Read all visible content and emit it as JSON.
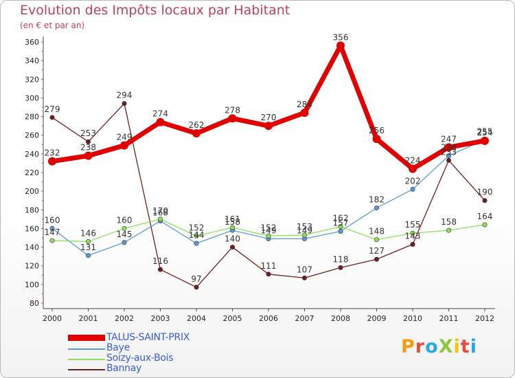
{
  "header": {
    "title": "Evolution des Impôts locaux par Habitant",
    "subtitle": "(en € et par an)"
  },
  "logo": {
    "text": "ProXiti",
    "colors": [
      "#f39c12",
      "#e74c3c",
      "#27a9e1",
      "#8dc63f",
      "#f1c40f",
      "#e74c3c",
      "#27a9e1"
    ]
  },
  "chart_data": {
    "type": "line",
    "x": [
      "2000",
      "2001",
      "2002",
      "2003",
      "2004",
      "2005",
      "2006",
      "2007",
      "2008",
      "2009",
      "2010",
      "2011",
      "2012"
    ],
    "ylim": [
      80,
      360
    ],
    "yticks": [
      80,
      100,
      120,
      140,
      160,
      180,
      200,
      220,
      240,
      260,
      280,
      300,
      320,
      340,
      360
    ],
    "grid": false,
    "legend_position": "bottom-left",
    "series": [
      {
        "name": "TALUS-SAINT-PRIX",
        "color": "#e00000",
        "values": [
          232,
          238,
          249,
          274,
          262,
          278,
          270,
          284,
          356,
          256,
          224,
          247,
          254
        ]
      },
      {
        "name": "Baye",
        "color": "#5b9bd5",
        "values": [
          160,
          131,
          145,
          168,
          144,
          158,
          149,
          149,
          157,
          182,
          202,
          238,
          255
        ]
      },
      {
        "name": "Soizy-aux-Bois",
        "color": "#8ee05a",
        "values": [
          147,
          146,
          160,
          170,
          152,
          161,
          152,
          153,
          162,
          148,
          155,
          158,
          164
        ]
      },
      {
        "name": "Bannay",
        "color": "#6e1e1e",
        "values": [
          279,
          253,
          294,
          116,
          97,
          140,
          111,
          107,
          118,
          127,
          143,
          233,
          190
        ]
      }
    ]
  }
}
